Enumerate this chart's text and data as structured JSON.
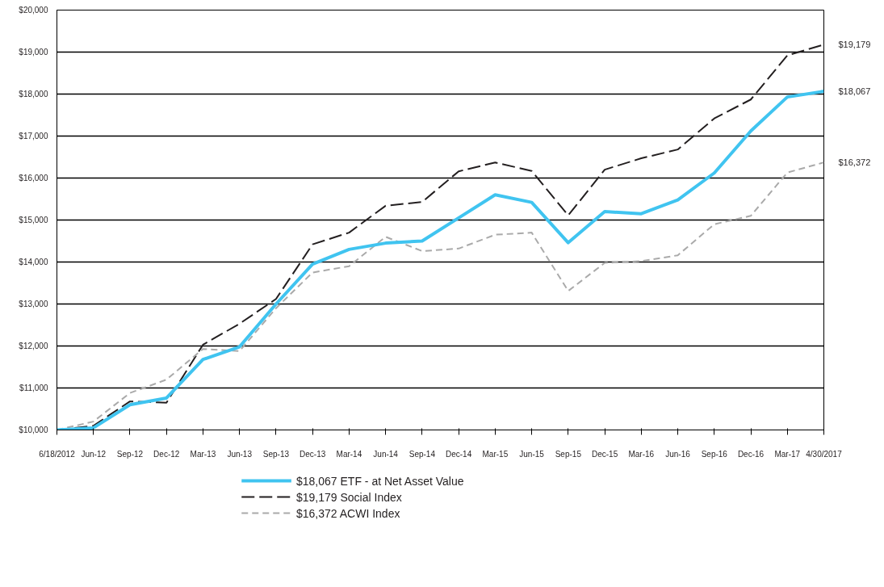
{
  "chart_data": {
    "type": "line",
    "categories": [
      "6/18/2012",
      "Jun-12",
      "Sep-12",
      "Dec-12",
      "Mar-13",
      "Jun-13",
      "Sep-13",
      "Dec-13",
      "Mar-14",
      "Jun-14",
      "Sep-14",
      "Dec-14",
      "Mar-15",
      "Jun-15",
      "Sep-15",
      "Dec-15",
      "Mar-16",
      "Jun-16",
      "Sep-16",
      "Dec-16",
      "Mar-17",
      "4/30/2017"
    ],
    "series": [
      {
        "name": "$18,067 ETF - at Net Asset Value",
        "color": "#40c4f0",
        "line_style": "solid",
        "values": [
          10000,
          10050,
          10600,
          10760,
          11680,
          11980,
          13000,
          13950,
          14300,
          14450,
          14500,
          15050,
          15600,
          15420,
          14460,
          15200,
          15150,
          15480,
          16120,
          17120,
          17930,
          18067
        ]
      },
      {
        "name": "$19,179 Social Index",
        "color": "#231f20",
        "line_style": "dashed",
        "values": [
          10000,
          10100,
          10680,
          10650,
          12030,
          12530,
          13120,
          14420,
          14700,
          15340,
          15430,
          16160,
          16370,
          16170,
          15110,
          16200,
          16470,
          16680,
          17420,
          17870,
          18920,
          19179
        ]
      },
      {
        "name": "$16,372 ACWI Index",
        "color": "#aaaaaa",
        "line_style": "dashed",
        "values": [
          10000,
          10200,
          10880,
          11200,
          11930,
          11880,
          12900,
          13750,
          13900,
          14600,
          14260,
          14320,
          14650,
          14700,
          13310,
          13980,
          14020,
          14160,
          14900,
          15100,
          16130,
          16372
        ]
      }
    ],
    "ylim": [
      10000,
      20000
    ],
    "yticks": [
      {
        "value": 10000,
        "label": "$10,000"
      },
      {
        "value": 11000,
        "label": "$11,000"
      },
      {
        "value": 12000,
        "label": "$12,000"
      },
      {
        "value": 13000,
        "label": "$13,000"
      },
      {
        "value": 14000,
        "label": "$14,000"
      },
      {
        "value": 15000,
        "label": "$15,000"
      },
      {
        "value": 16000,
        "label": "$16,000"
      },
      {
        "value": 17000,
        "label": "$17,000"
      },
      {
        "value": 18000,
        "label": "$18,000"
      },
      {
        "value": 19000,
        "label": "$19,000"
      },
      {
        "value": 20000,
        "label": "$20,000"
      }
    ],
    "grid": "y",
    "legend": "bottom",
    "annotations": [
      {
        "text": "$19,179",
        "x": "4/30/2017",
        "y": 19179
      },
      {
        "text": "$18,067",
        "x": "4/30/2017",
        "y": 18067
      },
      {
        "text": "$16,372",
        "x": "4/30/2017",
        "y": 16372
      }
    ]
  }
}
